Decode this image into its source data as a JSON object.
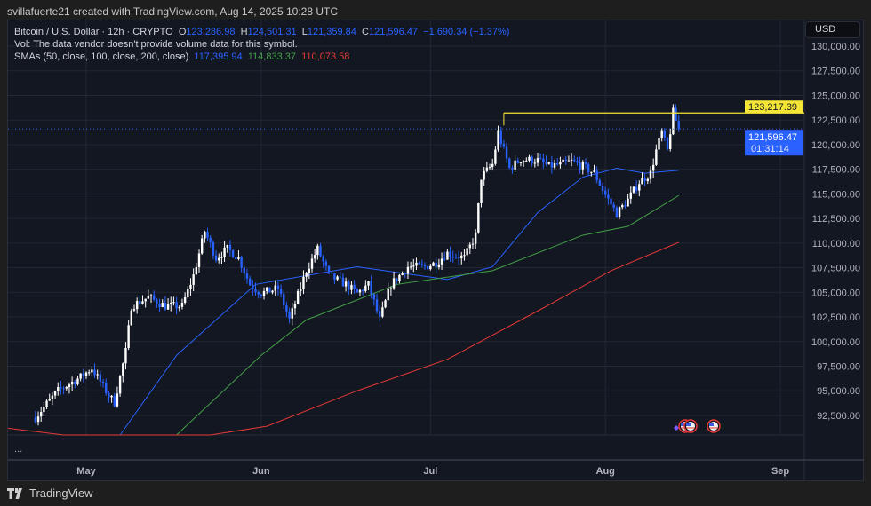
{
  "credit": "svillafuerte21 created with TradingView.com, Aug 14, 2025 10:28 UTC",
  "legend": {
    "symbol": "Bitcoin / U.S. Dollar · 12h · CRYPTO",
    "o_label": "O",
    "o": "123,286.98",
    "h_label": "H",
    "h": "124,501.31",
    "l_label": "L",
    "l": "121,359.84",
    "c_label": "C",
    "c": "121,596.47",
    "change": "−1,690.34 (−1.37%)",
    "vol": "Vol: The data vendor doesn't provide volume data for this symbol.",
    "sma_label": "SMAs (50, close, 100, close, 200, close)",
    "sma50": "117,395.94",
    "sma100": "114,833.37",
    "sma200": "110,073.58"
  },
  "currency": "USD",
  "more": "...",
  "footer": {
    "brand": "TradingView"
  },
  "colors": {
    "up": "#ffffff",
    "down": "#2962ff",
    "sma50": "#2962ff",
    "sma100": "#43a047",
    "sma200": "#e53935",
    "resistance": "#f5e536",
    "bg": "#131722"
  },
  "chart_data": {
    "type": "candlestick",
    "interval": "12h",
    "ylim": [
      90000,
      132000
    ],
    "y_ticks": [
      92500,
      95000,
      97500,
      100000,
      102500,
      105000,
      107500,
      110000,
      112500,
      115000,
      117500,
      120000,
      122500,
      125000,
      127500,
      130000
    ],
    "y_tick_labels": [
      "92,500.00",
      "95,000.00",
      "97,500.00",
      "100,000.00",
      "102,500.00",
      "105,000.00",
      "107,500.00",
      "110,000.00",
      "112,500.00",
      "115,000.00",
      "117,500.00",
      "120,000.00",
      "122,500.00",
      "125,000.00",
      "127,500.00",
      "130,000.00"
    ],
    "x_ticks": [
      {
        "date": "2025-05-01",
        "label": "May"
      },
      {
        "date": "2025-06-01",
        "label": "Jun"
      },
      {
        "date": "2025-07-01",
        "label": "Jul"
      },
      {
        "date": "2025-08-01",
        "label": "Aug"
      },
      {
        "date": "2025-09-01",
        "label": "Sep"
      }
    ],
    "xlim": [
      "2025-04-17",
      "2025-09-05"
    ],
    "close_path": [
      [
        "2025-04-22",
        92300
      ],
      [
        "2025-04-24",
        93700
      ],
      [
        "2025-04-26",
        95000
      ],
      [
        "2025-04-30",
        96400
      ],
      [
        "2025-05-02",
        97300
      ],
      [
        "2025-05-05",
        94500
      ],
      [
        "2025-05-06",
        93800
      ],
      [
        "2025-05-08",
        99000
      ],
      [
        "2025-05-09",
        103600
      ],
      [
        "2025-05-12",
        104500
      ],
      [
        "2025-05-15",
        103600
      ],
      [
        "2025-05-18",
        103600
      ],
      [
        "2025-05-20",
        106700
      ],
      [
        "2025-05-22",
        111200
      ],
      [
        "2025-05-24",
        108500
      ],
      [
        "2025-05-26",
        109400
      ],
      [
        "2025-05-28",
        108500
      ],
      [
        "2025-05-30",
        105800
      ],
      [
        "2025-06-01",
        104900
      ],
      [
        "2025-06-04",
        105400
      ],
      [
        "2025-06-06",
        102200
      ],
      [
        "2025-06-09",
        107200
      ],
      [
        "2025-06-11",
        109400
      ],
      [
        "2025-06-13",
        106700
      ],
      [
        "2025-06-16",
        105800
      ],
      [
        "2025-06-18",
        104900
      ],
      [
        "2025-06-20",
        105800
      ],
      [
        "2025-06-22",
        102200
      ],
      [
        "2025-06-24",
        105800
      ],
      [
        "2025-06-27",
        107600
      ],
      [
        "2025-06-30",
        107600
      ],
      [
        "2025-07-02",
        108000
      ],
      [
        "2025-07-04",
        109000
      ],
      [
        "2025-07-07",
        108500
      ],
      [
        "2025-07-09",
        110800
      ],
      [
        "2025-07-10",
        116700
      ],
      [
        "2025-07-12",
        118000
      ],
      [
        "2025-07-13",
        121200
      ],
      [
        "2025-07-15",
        117600
      ],
      [
        "2025-07-17",
        118500
      ],
      [
        "2025-07-20",
        118400
      ],
      [
        "2025-07-22",
        117800
      ],
      [
        "2025-07-24",
        118000
      ],
      [
        "2025-07-26",
        118300
      ],
      [
        "2025-07-28",
        117800
      ],
      [
        "2025-07-30",
        117100
      ],
      [
        "2025-08-01",
        114900
      ],
      [
        "2025-08-03",
        113000
      ],
      [
        "2025-08-05",
        114400
      ],
      [
        "2025-08-07",
        116200
      ],
      [
        "2025-08-09",
        117100
      ],
      [
        "2025-08-10",
        119400
      ],
      [
        "2025-08-11",
        121200
      ],
      [
        "2025-08-12",
        119400
      ],
      [
        "2025-08-13",
        123287
      ],
      [
        "2025-08-14",
        121596.47
      ]
    ],
    "series": [
      {
        "name": "SMA 50",
        "points": [
          [
            "2025-05-07",
            90500
          ],
          [
            "2025-05-17",
            98600
          ],
          [
            "2025-05-31",
            105800
          ],
          [
            "2025-06-18",
            107600
          ],
          [
            "2025-07-04",
            106300
          ],
          [
            "2025-07-12",
            107600
          ],
          [
            "2025-07-20",
            113100
          ],
          [
            "2025-07-28",
            116700
          ],
          [
            "2025-08-03",
            117600
          ],
          [
            "2025-08-08",
            117100
          ],
          [
            "2025-08-14",
            117395.94
          ]
        ]
      },
      {
        "name": "SMA 100",
        "points": [
          [
            "2025-05-17",
            90500
          ],
          [
            "2025-06-01",
            98600
          ],
          [
            "2025-06-09",
            102200
          ],
          [
            "2025-06-25",
            105800
          ],
          [
            "2025-07-12",
            107200
          ],
          [
            "2025-07-28",
            110800
          ],
          [
            "2025-08-05",
            111700
          ],
          [
            "2025-08-14",
            114833.37
          ]
        ]
      },
      {
        "name": "SMA 200",
        "points": [
          [
            "2025-04-17",
            91200
          ],
          [
            "2025-04-27",
            90500
          ],
          [
            "2025-05-23",
            90500
          ],
          [
            "2025-06-02",
            91400
          ],
          [
            "2025-06-18",
            95000
          ],
          [
            "2025-07-04",
            98200
          ],
          [
            "2025-07-20",
            103100
          ],
          [
            "2025-08-02",
            107200
          ],
          [
            "2025-08-14",
            110073.58
          ]
        ]
      }
    ],
    "resistance": {
      "value": 123217.39,
      "label": "123,217.39",
      "from": "2025-07-14"
    },
    "last_price": {
      "value": 121596.47,
      "label": "121,596.47",
      "countdown": "01:31:14"
    },
    "events": [
      "2025-08-14",
      "2025-08-15",
      "2025-08-19"
    ]
  }
}
